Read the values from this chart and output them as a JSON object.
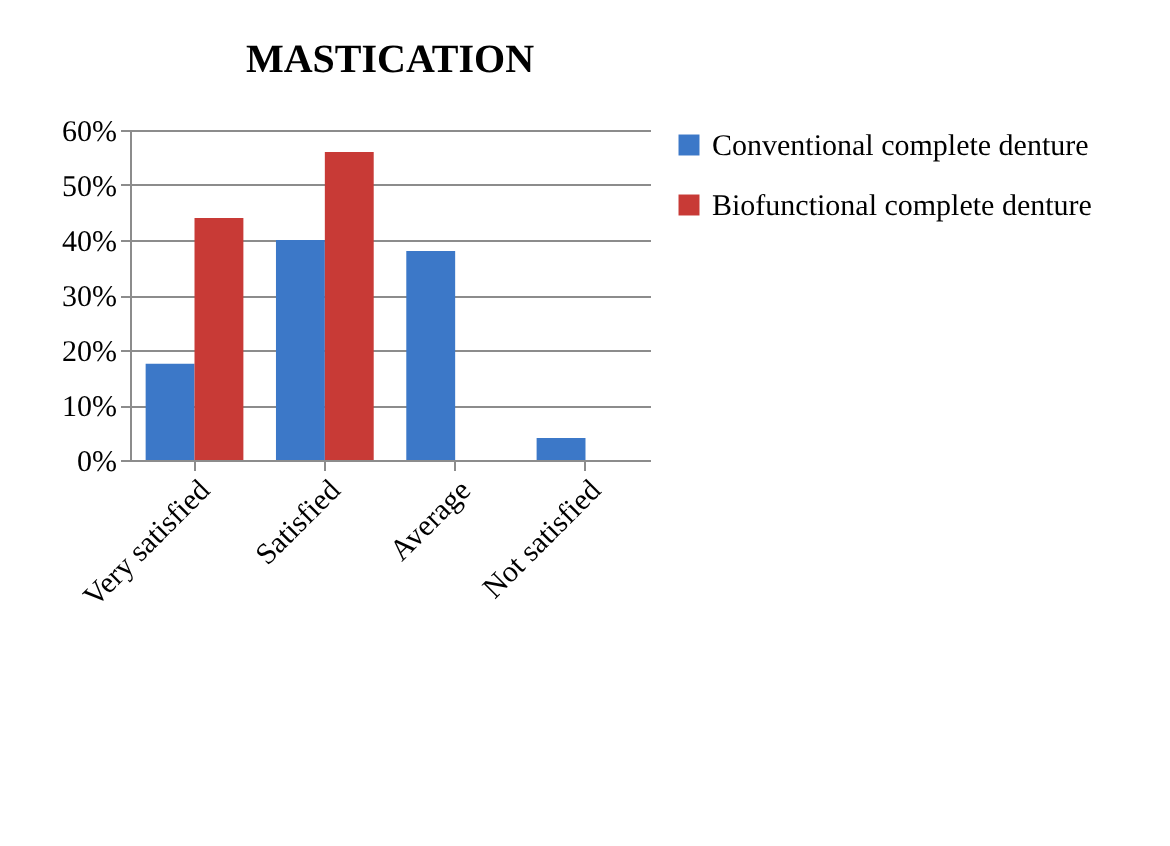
{
  "chart_data": {
    "type": "bar",
    "title": "MASTICATION",
    "categories": [
      "Very satisfied",
      "Satisfied",
      "Average",
      "Not satisfied"
    ],
    "series": [
      {
        "name": "Conventional complete denture",
        "color": "#3c78c8",
        "values": [
          17.5,
          40,
          38,
          4
        ]
      },
      {
        "name": "Biofunctional complete denture",
        "color": "#c83a36",
        "values": [
          44,
          56,
          0,
          0
        ]
      }
    ],
    "ylim": [
      0,
      60
    ],
    "yticks": [
      {
        "value": 0,
        "label": "0%"
      },
      {
        "value": 10,
        "label": "10%"
      },
      {
        "value": 20,
        "label": "20%"
      },
      {
        "value": 30,
        "label": "30%"
      },
      {
        "value": 40,
        "label": "40%"
      },
      {
        "value": 50,
        "label": "50%"
      },
      {
        "value": 60,
        "label": "60%"
      }
    ],
    "grid": "y",
    "legend": "right"
  }
}
